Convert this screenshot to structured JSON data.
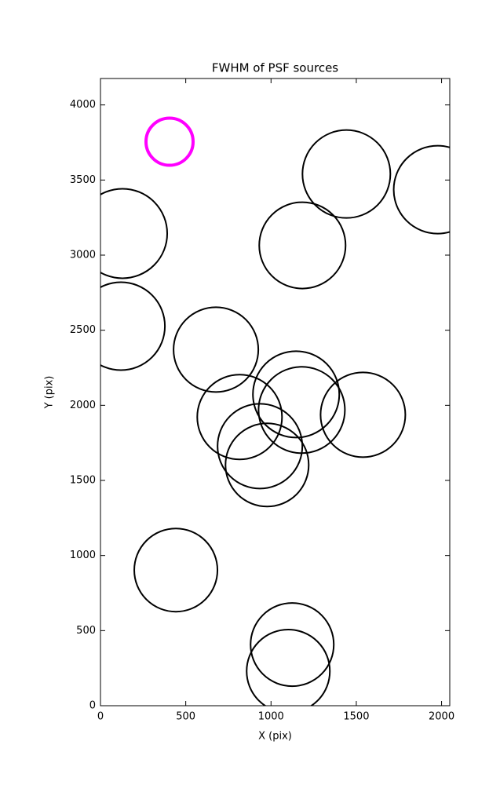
{
  "chart_data": {
    "type": "scatter",
    "title": "FWHM of PSF sources",
    "x_label": "X (pix)",
    "y_label": "Y (pix)",
    "x": [
      405,
      1442,
      1977,
      129,
      1184,
      120,
      677,
      1147,
      816,
      1180,
      1539,
      935,
      977,
      442,
      1124,
      1101
    ],
    "y": [
      3755,
      3540,
      3436,
      3144,
      3065,
      2527,
      2371,
      2073,
      1922,
      1969,
      1937,
      1728,
      1603,
      903,
      407,
      230
    ],
    "sizes": [
      30,
      56,
      56,
      57,
      55,
      56,
      54,
      55,
      54,
      55,
      54,
      54,
      53,
      53,
      53,
      53
    ],
    "colors": [
      "#ff00ff",
      "#000000",
      "#000000",
      "#000000",
      "#000000",
      "#000000",
      "#000000",
      "#000000",
      "#000000",
      "#000000",
      "#000000",
      "#000000",
      "#000000",
      "#000000",
      "#000000",
      "#000000"
    ],
    "xlim": [
      0,
      2048
    ],
    "ylim": [
      0,
      4176
    ],
    "xticks": [
      0,
      500,
      1000,
      1500,
      2000
    ],
    "yticks": [
      0,
      500,
      1000,
      1500,
      2000,
      2500,
      3000,
      3500,
      4000
    ]
  }
}
